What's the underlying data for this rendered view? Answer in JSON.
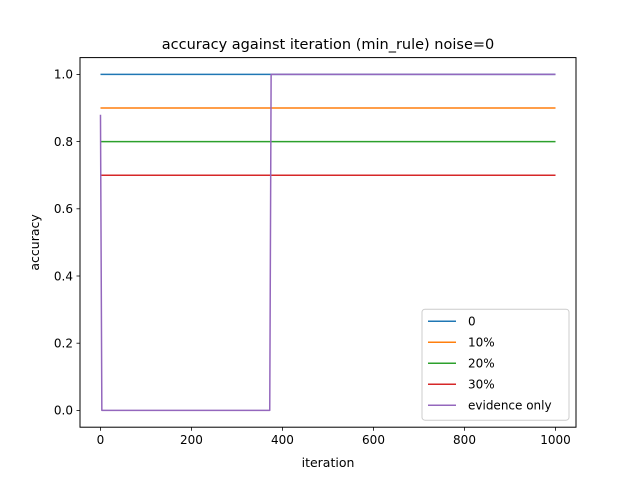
{
  "chart_data": {
    "type": "line",
    "title": "accuracy against iteration (min_rule) noise=0",
    "xlabel": "iteration",
    "ylabel": "accuracy",
    "xlim": [
      -45,
      1045
    ],
    "ylim": [
      -0.05,
      1.05
    ],
    "xticks": [
      0,
      200,
      400,
      600,
      800,
      1000
    ],
    "yticks": [
      0.0,
      0.2,
      0.4,
      0.6,
      0.8,
      1.0
    ],
    "xtick_labels": [
      "0",
      "200",
      "400",
      "600",
      "800",
      "1000"
    ],
    "ytick_labels": [
      "0.0",
      "0.2",
      "0.4",
      "0.6",
      "0.8",
      "1.0"
    ],
    "grid": false,
    "legend_position": "lower-right",
    "series": [
      {
        "name": "0",
        "color": "#1f77b4",
        "x": [
          0,
          1000
        ],
        "y": [
          1.0,
          1.0
        ]
      },
      {
        "name": "10%",
        "color": "#ff7f0e",
        "x": [
          0,
          1000
        ],
        "y": [
          0.9,
          0.9
        ]
      },
      {
        "name": "20%",
        "color": "#2ca02c",
        "x": [
          0,
          1000
        ],
        "y": [
          0.8,
          0.8
        ]
      },
      {
        "name": "30%",
        "color": "#d62728",
        "x": [
          0,
          1000
        ],
        "y": [
          0.7,
          0.7
        ]
      },
      {
        "name": "evidence only",
        "color": "#9467bd",
        "x": [
          0,
          3,
          372,
          375,
          1000
        ],
        "y": [
          0.88,
          0.0,
          0.0,
          1.0,
          1.0
        ]
      }
    ]
  }
}
